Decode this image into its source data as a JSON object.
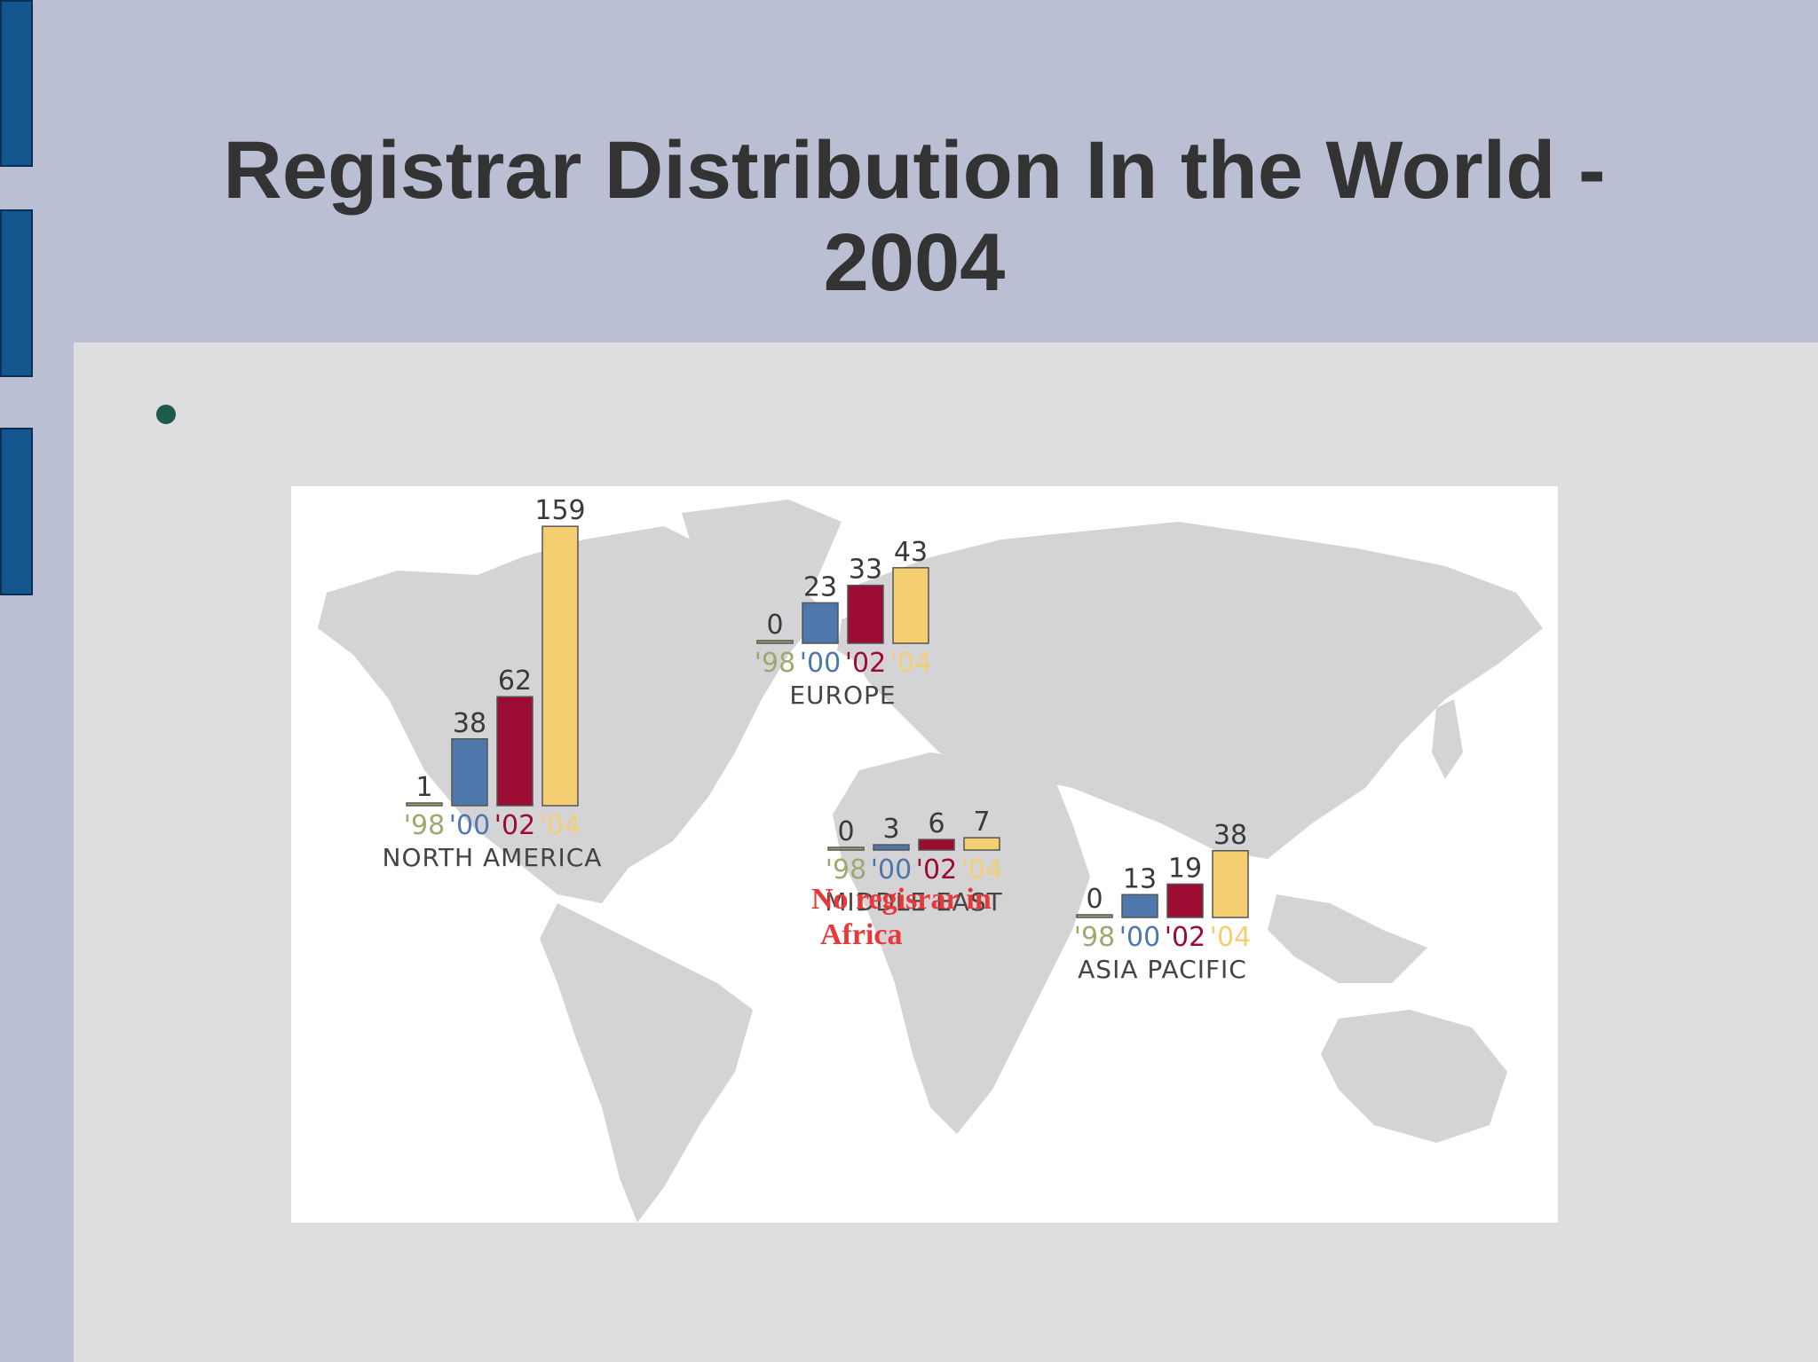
{
  "slide": {
    "title": "Registrar Distribution In the World - 2004",
    "africa_note_line1": "No regisrar in",
    "africa_note_line2": "Africa"
  },
  "colors": {
    "background": "#bbbfd4",
    "panel": "#dedee0",
    "accent": "#14578f",
    "y1998": "#a0a870",
    "y2000": "#4e78ab",
    "y2002": "#9c0b32",
    "y2004": "#f5ce72",
    "note": "#e8383a"
  },
  "chart_data": {
    "type": "bar",
    "categories": [
      "'98",
      "'00",
      "'02",
      "'04"
    ],
    "regions": [
      {
        "name": "NORTH AMERICA",
        "values": [
          1,
          38,
          62,
          159
        ]
      },
      {
        "name": "EUROPE",
        "values": [
          0,
          23,
          33,
          43
        ]
      },
      {
        "name": "MIDDLE EAST",
        "values": [
          0,
          3,
          6,
          7
        ]
      },
      {
        "name": "ASIA PACIFIC",
        "values": [
          0,
          13,
          19,
          38
        ]
      }
    ]
  }
}
